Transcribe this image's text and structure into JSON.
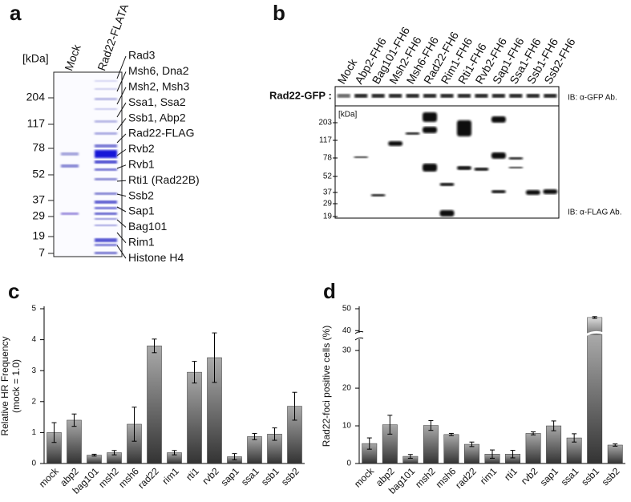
{
  "panel_a": {
    "label": "a",
    "lanes": [
      "Mock",
      "Rad22-FLATA"
    ],
    "unit": "[kDa]",
    "markers": [
      "204",
      "117",
      "78",
      "52",
      "37",
      "29",
      "19",
      "7"
    ],
    "proteins": [
      "Rad3",
      "Msh6, Dna2",
      "Msh2, Msh3",
      "Ssa1, Ssa2",
      "Ssb1, Abp2",
      "Rad22-FLAG",
      "Rvb2",
      "Rvb1",
      "Rti1 (Rad22B)",
      "Ssb2",
      "Sap1",
      "Bag101",
      "Rim1",
      "Histone H4"
    ]
  },
  "panel_b": {
    "label": "b",
    "lanes": [
      "Mock",
      "Abp2-FH6",
      "Bag101-FH6",
      "Msh2-FH6",
      "Msh6-FH6",
      "Rad22-FH6",
      "Rim1-FH6",
      "Rti1-FH6",
      "Rvb2-FH6",
      "Sap1-FH6",
      "Ssa1-FH6",
      "Ssb1-FH6",
      "Ssb2-FH6"
    ],
    "row_label": "Rad22-GFP :",
    "unit": "[kDa]",
    "markers": [
      "203",
      "117",
      "78",
      "52",
      "37",
      "29",
      "19"
    ],
    "blots": [
      "IB: α-GFP Ab.",
      "IB: α-FLAG Ab."
    ]
  },
  "chart_data": [
    {
      "type": "bar",
      "panel_label": "c",
      "ylabel": "Relative HR Frequency",
      "ylabel_note": "(mock = 1.0)",
      "categories": [
        "mock",
        "abp2",
        "bag101",
        "msh2",
        "msh6",
        "rad22",
        "rim1",
        "rti1",
        "rvb2",
        "sap1",
        "ssa1",
        "ssb1",
        "ssb2"
      ],
      "values": [
        1.0,
        1.4,
        0.27,
        0.35,
        1.27,
        3.8,
        0.35,
        2.95,
        3.42,
        0.22,
        0.87,
        0.95,
        1.85
      ],
      "errors": [
        0.32,
        0.2,
        0.03,
        0.07,
        0.55,
        0.22,
        0.07,
        0.35,
        0.8,
        0.1,
        0.1,
        0.2,
        0.45
      ],
      "color": "#444444",
      "ylim": [
        0,
        5
      ],
      "yticks": [
        0,
        1,
        2,
        3,
        4,
        5
      ]
    },
    {
      "type": "bar",
      "panel_label": "d",
      "ylabel": "Rad22-foci positive cells (%)",
      "categories": [
        "mock",
        "abp2",
        "bag101",
        "msh2",
        "msh6",
        "rad22",
        "rim1",
        "rti1",
        "rvb2",
        "sap1",
        "ssa1",
        "ssb1",
        "ssb2"
      ],
      "values": [
        5.3,
        10.3,
        1.9,
        10.1,
        7.7,
        5.1,
        2.5,
        2.5,
        8.0,
        10.0,
        6.8,
        46,
        4.9
      ],
      "errors": [
        1.5,
        2.5,
        0.5,
        1.3,
        0.3,
        0.6,
        1.1,
        1.0,
        0.4,
        1.3,
        1.1,
        0.4,
        0.3
      ],
      "color": "#444444",
      "ylim": [
        0,
        50
      ],
      "yticks": [
        0,
        10,
        20,
        30,
        40,
        50
      ],
      "y_break": [
        33,
        39
      ]
    }
  ]
}
